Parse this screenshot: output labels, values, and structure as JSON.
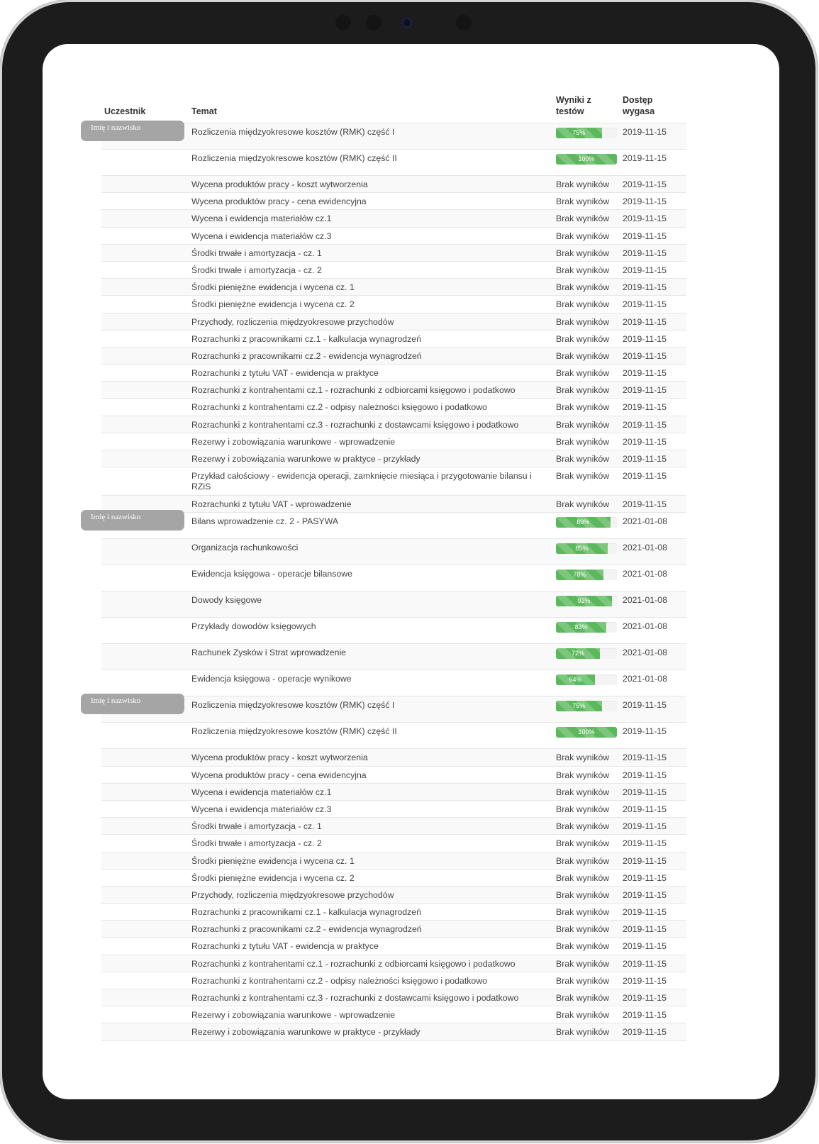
{
  "headers": {
    "participant": "Uczestnik",
    "topic": "Temat",
    "results": "Wyniki z testów",
    "expires": "Dostęp wygasa"
  },
  "colors": {
    "progress": "#5cb85c",
    "pill": "#a5a5a5"
  },
  "groups": [
    {
      "name": "Imię i nazwisko",
      "rows": [
        {
          "topic": "Rozliczenia międzyokresowe kosztów (RMK) część I",
          "score": 75,
          "date": "2019-11-15"
        },
        {
          "topic": "Rozliczenia międzyokresowe kosztów (RMK) część II",
          "score": 100,
          "date": "2019-11-15"
        },
        {
          "topic": "Wycena produktów pracy - koszt wytworzenia",
          "result": "Brak wyników",
          "date": "2019-11-15"
        },
        {
          "topic": "Wycena produktów pracy - cena ewidencyjna",
          "result": "Brak wyników",
          "date": "2019-11-15"
        },
        {
          "topic": "Wycena i ewidencja materiałów cz.1",
          "result": "Brak wyników",
          "date": "2019-11-15"
        },
        {
          "topic": "Wycena i ewidencja materiałów cz.3",
          "result": "Brak wyników",
          "date": "2019-11-15"
        },
        {
          "topic": "Środki trwałe i amortyzacja - cz. 1",
          "result": "Brak wyników",
          "date": "2019-11-15"
        },
        {
          "topic": "Środki trwałe i amortyzacja - cz. 2",
          "result": "Brak wyników",
          "date": "2019-11-15"
        },
        {
          "topic": "Środki pieniężne ewidencja i wycena cz. 1",
          "result": "Brak wyników",
          "date": "2019-11-15"
        },
        {
          "topic": "Środki pieniężne ewidencja i wycena cz. 2",
          "result": "Brak wyników",
          "date": "2019-11-15"
        },
        {
          "topic": "Przychody, rozliczenia międzyokresowe przychodów",
          "result": "Brak wyników",
          "date": "2019-11-15"
        },
        {
          "topic": "Rozrachunki z pracownikami cz.1 - kalkulacja wynagrodzeń",
          "result": "Brak wyników",
          "date": "2019-11-15"
        },
        {
          "topic": "Rozrachunki z pracownikami cz.2 - ewidencja wynagrodzeń",
          "result": "Brak wyników",
          "date": "2019-11-15"
        },
        {
          "topic": "Rozrachunki z tytułu VAT - ewidencja w praktyce",
          "result": "Brak wyników",
          "date": "2019-11-15"
        },
        {
          "topic": "Rozrachunki z kontrahentami cz.1 - rozrachunki z odbiorcami księgowo i podatkowo",
          "result": "Brak wyników",
          "date": "2019-11-15"
        },
        {
          "topic": "Rozrachunki z kontrahentami cz.2 - odpisy należności księgowo i podatkowo",
          "result": "Brak wyników",
          "date": "2019-11-15"
        },
        {
          "topic": "Rozrachunki z kontrahentami cz.3 - rozrachunki z dostawcami księgowo i podatkowo",
          "result": "Brak wyników",
          "date": "2019-11-15"
        },
        {
          "topic": "Rezerwy i zobowiązania warunkowe - wprowadzenie",
          "result": "Brak wyników",
          "date": "2019-11-15"
        },
        {
          "topic": "Rezerwy i zobowiązania warunkowe w praktyce - przykłady",
          "result": "Brak wyników",
          "date": "2019-11-15"
        },
        {
          "topic": "Przykład całościowy - ewidencja operacji, zamknięcie miesiąca i przygotowanie bilansu i RZiS",
          "result": "Brak wyników",
          "date": "2019-11-15"
        },
        {
          "topic": "Rozrachunki z tytułu VAT - wprowadzenie",
          "result": "Brak wyników",
          "date": "2019-11-15"
        }
      ]
    },
    {
      "name": "Imię i nazwisko",
      "rows": [
        {
          "topic": "Bilans wprowadzenie cz. 2 - PASYWA",
          "score": 89,
          "date": "2021-01-08"
        },
        {
          "topic": "Organizacja rachunkowości",
          "score": 85,
          "date": "2021-01-08"
        },
        {
          "topic": "Ewidencja księgowa - operacje bilansowe",
          "score": 78,
          "date": "2021-01-08"
        },
        {
          "topic": "Dowody księgowe",
          "score": 92,
          "date": "2021-01-08"
        },
        {
          "topic": "Przykłady dowodów księgowych",
          "score": 83,
          "date": "2021-01-08"
        },
        {
          "topic": "Rachunek Zysków i Strat wprowadzenie",
          "score": 72,
          "date": "2021-01-08"
        },
        {
          "topic": "Ewidencja księgowa - operacje wynikowe",
          "score": 64,
          "date": "2021-01-08"
        }
      ]
    },
    {
      "name": "Imię i nazwisko",
      "rows": [
        {
          "topic": "Rozliczenia międzyokresowe kosztów (RMK) część I",
          "score": 75,
          "date": "2019-11-15"
        },
        {
          "topic": "Rozliczenia międzyokresowe kosztów (RMK) część II",
          "score": 100,
          "date": "2019-11-15"
        },
        {
          "topic": "Wycena produktów pracy - koszt wytworzenia",
          "result": "Brak wyników",
          "date": "2019-11-15"
        },
        {
          "topic": "Wycena produktów pracy - cena ewidencyjna",
          "result": "Brak wyników",
          "date": "2019-11-15"
        },
        {
          "topic": "Wycena i ewidencja materiałów cz.1",
          "result": "Brak wyników",
          "date": "2019-11-15"
        },
        {
          "topic": "Wycena i ewidencja materiałów cz.3",
          "result": "Brak wyników",
          "date": "2019-11-15"
        },
        {
          "topic": "Środki trwałe i amortyzacja - cz. 1",
          "result": "Brak wyników",
          "date": "2019-11-15"
        },
        {
          "topic": "Środki trwałe i amortyzacja - cz. 2",
          "result": "Brak wyników",
          "date": "2019-11-15"
        },
        {
          "topic": "Środki pieniężne ewidencja i wycena cz. 1",
          "result": "Brak wyników",
          "date": "2019-11-15"
        },
        {
          "topic": "Środki pieniężne ewidencja i wycena cz. 2",
          "result": "Brak wyników",
          "date": "2019-11-15"
        },
        {
          "topic": "Przychody, rozliczenia międzyokresowe przychodów",
          "result": "Brak wyników",
          "date": "2019-11-15"
        },
        {
          "topic": "Rozrachunki z pracownikami cz.1 - kalkulacja wynagrodzeń",
          "result": "Brak wyników",
          "date": "2019-11-15"
        },
        {
          "topic": "Rozrachunki z pracownikami cz.2 - ewidencja wynagrodzeń",
          "result": "Brak wyników",
          "date": "2019-11-15"
        },
        {
          "topic": "Rozrachunki z tytułu VAT - ewidencja w praktyce",
          "result": "Brak wyników",
          "date": "2019-11-15"
        },
        {
          "topic": "Rozrachunki z kontrahentami cz.1 - rozrachunki z odbiorcami księgowo i podatkowo",
          "result": "Brak wyników",
          "date": "2019-11-15"
        },
        {
          "topic": "Rozrachunki z kontrahentami cz.2 - odpisy należności księgowo i podatkowo",
          "result": "Brak wyników",
          "date": "2019-11-15"
        },
        {
          "topic": "Rozrachunki z kontrahentami cz.3 - rozrachunki z dostawcami księgowo i podatkowo",
          "result": "Brak wyników",
          "date": "2019-11-15"
        },
        {
          "topic": "Rezerwy i zobowiązania warunkowe - wprowadzenie",
          "result": "Brak wyników",
          "date": "2019-11-15"
        },
        {
          "topic": "Rezerwy i zobowiązania warunkowe w praktyce - przykłady",
          "result": "Brak wyników",
          "date": "2019-11-15"
        }
      ]
    }
  ]
}
